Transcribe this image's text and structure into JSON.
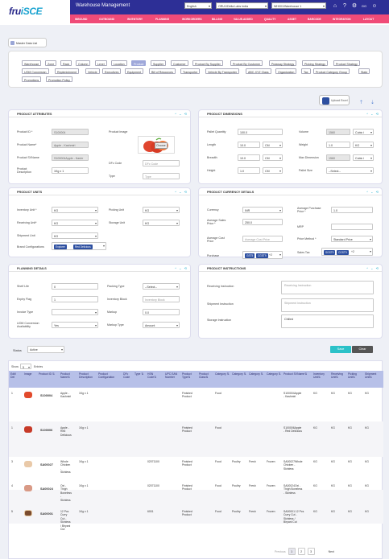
{
  "header": {
    "logo_main": "fru",
    "logo_accent": "iSCE",
    "app_title": "Warehouse Management",
    "language": "English",
    "company": "ORU1/Delta Labs India",
    "warehouse": "WH001/Warehouse 1",
    "user_initials": "GG"
  },
  "nav": [
    "INBOUND",
    "OUTBOUND",
    "INVENTORY",
    "PLANNING",
    "WORKORDERS",
    "BILLING",
    "VALUE-ADDED",
    "QUALITY",
    "ASSET",
    "BARCODE",
    "INTEGRATION",
    "LAYOUT"
  ],
  "module_label": "Master Data List",
  "tabs_row1": [
    "Warehouse",
    "Zone",
    "Rack",
    "Column",
    "Level",
    "Location",
    "Product",
    "Supplier",
    "Customer",
    "Product By Supplier",
    "Product By Customer",
    "Putaway Strategy",
    "Picking Strategy",
    "Product Strategy"
  ],
  "tabs_row2": [
    "UOM Conversion",
    "Replenishment",
    "Vehicle",
    "Executives",
    "Equipment",
    "Bill of Resources",
    "Transporter",
    "Vehicle By Transporter",
    "ABC-XYZ Class",
    "Organization",
    "Tax",
    "Product Category Group",
    "State"
  ],
  "tabs_row3": [
    "Promotions",
    "Promotion Policy"
  ],
  "active_tab": "Product",
  "upload_label": "Upload Excel",
  "product_attributes": {
    "title": "PRODUCT ATTRIBUTES",
    "id_label": "Product ID *",
    "id_value": "S100004",
    "name_label": "Product Name*",
    "name_value": "Apple - Kashmiri",
    "desc_label": "Product Description",
    "desc_value": "1Kg x 1",
    "sku_label": "Product SVName",
    "sku_value": "S100004Apple - Kashr",
    "image_label": "Product Image",
    "choose_label": "Choose",
    "dfc_label": "DFc Code",
    "dfc_placeholder": "DFc Code",
    "type_label": "Type",
    "type_placeholder": "Type"
  },
  "product_dimensions": {
    "title": "PRODUCT DIMENSIONS",
    "pq_label": "Pallet Quantity",
    "pq_value": "100.0",
    "vol_label": "Volume",
    "vol_value": "1560",
    "vol_unit": "Cubic i",
    "len_label": "Length",
    "len_value": "10.0",
    "len_unit": "CM",
    "wt_label": "Weight",
    "wt_value": "1.0",
    "wt_unit": "KG",
    "br_label": "Breadth",
    "br_value": "10.0",
    "br_unit": "CM",
    "mv_label": "Max Dimension",
    "mv_value": "1560",
    "mv_unit": "Cubic i",
    "ht_label": "Height",
    "ht_value": "1.0",
    "ht_unit": "CM",
    "ps_label": "Pallet Size",
    "ps_value": "--Select--"
  },
  "product_units": {
    "title": "PRODUCT UNITS",
    "inv_label": "Inventory Unit *",
    "inv_value": "KG",
    "pick_label": "Picking Unit",
    "pick_value": "KG",
    "rec_label": "Receiving Unit*",
    "rec_value": "KG",
    "stor_label": "Storage Unit",
    "stor_value": "KG",
    "ship_label": "Shipment Unit",
    "ship_value": "KG",
    "brand_label": "Brand Configurations",
    "brand_chips": [
      "Explorer",
      "Red Delicious"
    ]
  },
  "product_currency": {
    "title": "PRODUCT CURRENCY DETAILS",
    "cur_label": "Currency",
    "cur_value": "INR",
    "app_label": "Average Purchase Price *",
    "app_value": "1.0",
    "asp_label": "Average Sales Price *",
    "asp_value": "250.0",
    "mrp_label": "MRP",
    "acp_label": "Average Cost Price",
    "acp_placeholder": "Average Cost Price",
    "pm_label": "Price Method *",
    "pm_value": "Standard Price",
    "purch_label": "Purchase",
    "purch_chips": [
      "GST5",
      "CGST9"
    ],
    "purch_more": "+2",
    "sales_label": "Sales Tax",
    "sales_chips": [
      "SGST9",
      "CGST9"
    ],
    "sales_more": "+2"
  },
  "planning": {
    "title": "PLANNING DETAILS",
    "shelf_label": "Shelf Life",
    "shelf_value": "0",
    "pack_label": "Packing Type",
    "pack_value": "--Select--",
    "expiry_label": "Expiry Flag",
    "expiry_value": "1",
    "block_label": "Inventory Block",
    "block_placeholder": "Inventory Block",
    "inv_type_label": "Invoice Type",
    "inv_type_value": "",
    "markup_label": "Markup",
    "markup_value": "0.0",
    "uomc_label": "UOM Conversion Availability",
    "uomc_value": "Yes",
    "markup_type_label": "Markup Type",
    "markup_type_value": "Amount"
  },
  "instructions": {
    "title": "PRODUCT INSTRUCTIONS",
    "rec_label": "Receiving Instruction",
    "rec_placeholder": "Receiving Instruction",
    "ship_label": "Shipment Instruction",
    "ship_placeholder": "Shipment Instruction",
    "stor_label": "Storage Instruction",
    "stor_value": "Chilled"
  },
  "status_label": "Status",
  "status_value": "Active",
  "save_label": "Save",
  "clear_label": "Clear",
  "grid": {
    "show_label": "Show",
    "show_value": "5",
    "entries_label": "Entries",
    "headers": [
      "Edit/ Del",
      "Image",
      "Product ID ⇅",
      "Product Name⇅",
      "Product Description",
      "Product Configuration",
      "DFc Code",
      "Type ⇅",
      "HSN Code⇅",
      "UPC EAN Number",
      "Product Type⇅",
      "Product Class⇅",
      "Category ⇅",
      "Category ⇅",
      "Category ⇅",
      "Category ⇅",
      "Product SVName⇅",
      "Inventory Unit⇅",
      "Receiving Unit⇅",
      "Picking Unit⇅",
      "Shipment Unit⇅"
    ],
    "rows": [
      {
        "no": "1",
        "id": "S100004",
        "name": "Apple -\nKashmiri",
        "desc": "1Kg x 1",
        "hsn": "",
        "ptype": "Finished\nProduct",
        "c1": "Food",
        "c2": "",
        "c3": "",
        "c4": "",
        "sv": "S100004Apple\n- Kashmiri",
        "u1": "KG",
        "u2": "KG",
        "u3": "KG",
        "u4": "KG"
      },
      {
        "no": "1",
        "id": "S100006",
        "name": "Apple -\nRed\nDelicious",
        "desc": "1Kg x 1",
        "hsn": "",
        "ptype": "Finished\nProduct",
        "c1": "Food",
        "c2": "",
        "c3": "",
        "c4": "",
        "sv": "S100006Apple\n- Red Delicious",
        "u1": "KG",
        "u2": "KG",
        "u3": "KG",
        "u4": "KG"
      },
      {
        "no": "3",
        "id": "SA00027",
        "name": "Whole\nChicken\n-\nSkinless",
        "desc": "1Kg x 1",
        "hsn": "02071100",
        "ptype": "Finished\nProduct",
        "c1": "Food",
        "c2": "Poultry",
        "c3": "Fresh",
        "c4": "Frozen",
        "sv": "SA00027Whole\nChicken -\nSkinless",
        "u1": "KG",
        "u2": "KG",
        "u3": "KG",
        "u4": "KG"
      },
      {
        "no": "4",
        "id": "SA00024",
        "name": "Oxi -\nThigh\nBoneless\n-\nSkinless",
        "desc": "1Kg x 1",
        "hsn": "02071100",
        "ptype": "Finished\nProduct",
        "c1": "Food",
        "c2": "Poultry",
        "c3": "Fresh",
        "c4": "Frozen",
        "sv": "SA00024Oxi -\nThigh Boneless\n- Skinless",
        "u1": "KG",
        "u2": "KG",
        "u3": "KG",
        "u4": "KG"
      },
      {
        "no": "5",
        "id": "SA00001",
        "name": "12 Pcs\nCurry\nCut -\nSkinless\n/ Biryani\nCut",
        "desc": "1Kg x 1",
        "hsn": "6001",
        "ptype": "Finished\nProduct",
        "c1": "Food",
        "c2": "Poultry",
        "c3": "Fresh",
        "c4": "Frozen",
        "sv": "SA00001 12 Pcs\nCurry Cut -\nSkinless /\nBiryani Cut",
        "u1": "KG",
        "u2": "KG",
        "u3": "KG",
        "u4": "KG"
      }
    ],
    "pager": {
      "prev": "Previous",
      "p1": "1",
      "p2": "2",
      "p3": "3",
      "next": "Next"
    }
  },
  "colors": {
    "nav": "#f04b78",
    "topbar": "#2d2f96",
    "accent": "#2bc1c8",
    "chip": "#2d4fa0"
  }
}
